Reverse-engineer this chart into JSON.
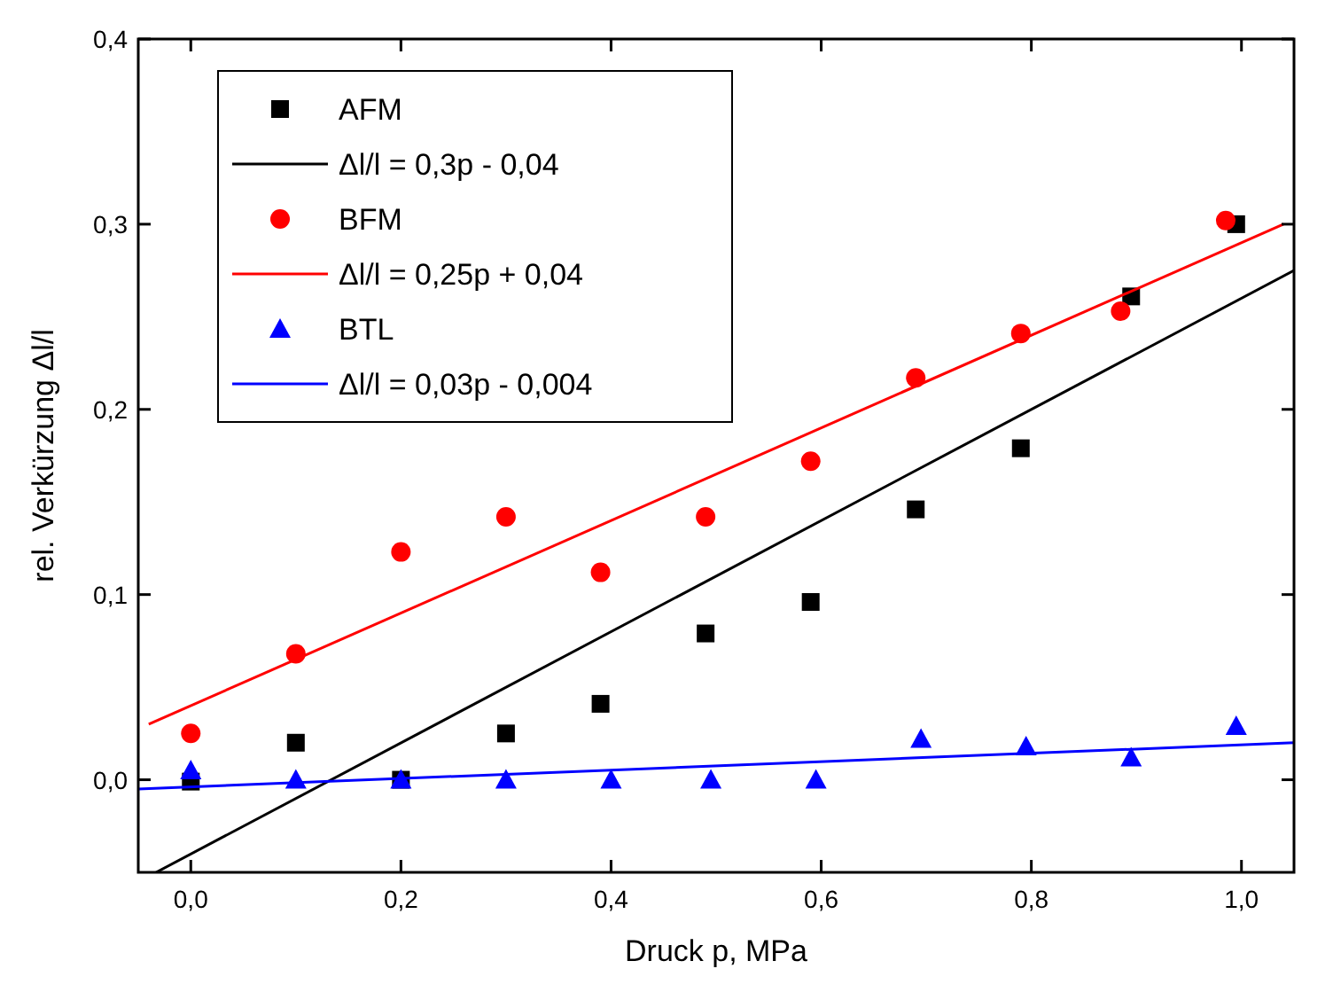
{
  "chart_data": {
    "type": "scatter",
    "xlabel": "Druck p, MPa",
    "ylabel": "rel. Verkürzung Δl/l",
    "xlim": [
      -0.05,
      1.05
    ],
    "ylim": [
      -0.05,
      0.4
    ],
    "xticks": [
      {
        "value": 0,
        "label": "0,0"
      },
      {
        "value": 0.2,
        "label": "0,2"
      },
      {
        "value": 0.4,
        "label": "0,4"
      },
      {
        "value": 0.6,
        "label": "0,6"
      },
      {
        "value": 0.8,
        "label": "0,8"
      },
      {
        "value": 1.0,
        "label": "1,0"
      }
    ],
    "yticks": [
      {
        "value": 0,
        "label": "0,0"
      },
      {
        "value": 0.1,
        "label": "0,1"
      },
      {
        "value": 0.2,
        "label": "0,2"
      },
      {
        "value": 0.3,
        "label": "0,3"
      },
      {
        "value": 0.4,
        "label": "0,4"
      }
    ],
    "grid": false,
    "legend": "top left",
    "series": [
      {
        "name": "AFM",
        "marker": "square",
        "color": "#000000",
        "x": [
          0,
          0.1,
          0.2,
          0.3,
          0.39,
          0.49,
          0.59,
          0.69,
          0.79,
          0.895,
          0.995
        ],
        "values": [
          -0.001,
          0.02,
          0.0,
          0.025,
          0.041,
          0.079,
          0.096,
          0.146,
          0.179,
          0.261,
          0.3
        ]
      },
      {
        "name": "Δl/l = 0,3p - 0,04",
        "type": "line",
        "color": "#000000",
        "x": [
          -0.033,
          1.05
        ],
        "values": [
          -0.05,
          0.275
        ]
      },
      {
        "name": "BFM",
        "marker": "circle",
        "color": "#ff0000",
        "x": [
          0,
          0.1,
          0.2,
          0.3,
          0.39,
          0.49,
          0.59,
          0.69,
          0.79,
          0.885,
          0.985
        ],
        "values": [
          0.025,
          0.068,
          0.123,
          0.142,
          0.112,
          0.142,
          0.172,
          0.217,
          0.241,
          0.253,
          0.302
        ]
      },
      {
        "name": "Δl/l = 0,25p + 0,04",
        "type": "line",
        "color": "#ff0000",
        "x": [
          -0.04,
          1.04
        ],
        "values": [
          0.03,
          0.3
        ]
      },
      {
        "name": "BTL",
        "marker": "triangle",
        "color": "#0000ff",
        "x": [
          0,
          0.1,
          0.2,
          0.3,
          0.4,
          0.495,
          0.595,
          0.695,
          0.795,
          0.895,
          0.995
        ],
        "values": [
          0.005,
          0.0,
          0.0,
          0.0,
          0.0,
          0.0,
          0.0,
          0.022,
          0.018,
          0.012,
          0.029
        ]
      },
      {
        "name": "Δl/l = 0,03p - 0,004",
        "type": "line",
        "color": "#0000ff",
        "x": [
          -0.05,
          1.05
        ],
        "values": [
          -0.005,
          0.02
        ]
      }
    ]
  }
}
